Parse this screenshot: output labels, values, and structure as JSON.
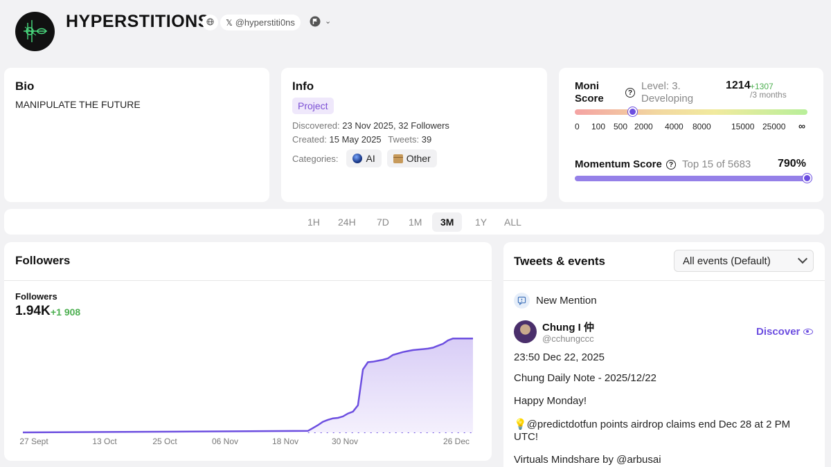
{
  "header": {
    "title": "HYPERSTITIONS",
    "x_handle": "@hyperstiti0ns",
    "icons": [
      "globe-icon",
      "x-logo-icon",
      "flag-icon",
      "chevron-down-icon"
    ]
  },
  "bio": {
    "title": "Bio",
    "text": "MANIPULATE THE FUTURE"
  },
  "info": {
    "title": "Info",
    "tag": "Project",
    "discovered_label": "Discovered:",
    "discovered_value": "23 Nov 2025, 32 Followers",
    "created_label": "Created:",
    "created_value": "15 May 2025",
    "tweets_label": "Tweets:",
    "tweets_value": "39",
    "categories_label": "Categories:",
    "categories": [
      "AI",
      "Other"
    ]
  },
  "moni": {
    "title": "Moni Score",
    "level": "Level: 3. Developing",
    "score": "1214",
    "delta": "+1307",
    "period": "/3 months",
    "ticks": [
      "0",
      "100",
      "500",
      "2000",
      "4000",
      "8000",
      "15000",
      "25000",
      "∞"
    ],
    "momentum_title": "Momentum Score",
    "momentum_rank": "Top 15 of 5683",
    "momentum_value": "790%",
    "momentum_fill": 1.0,
    "colors": {
      "accent": "#6c4ee0",
      "momentum": "#9580e8"
    }
  },
  "timeframes": {
    "items": [
      "1H",
      "24H",
      "7D",
      "1M",
      "3M",
      "1Y",
      "ALL"
    ],
    "active": "3M"
  },
  "followers": {
    "title": "Followers",
    "label": "Followers",
    "value": "1.94K",
    "delta": "+1 908"
  },
  "chart_data": {
    "type": "area",
    "x_labels": [
      "27 Sept",
      "13 Oct",
      "25 Oct",
      "06 Nov",
      "18 Nov",
      "30 Nov",
      "26 Dec"
    ],
    "x": [
      "2025-09-27",
      "2025-11-23",
      "2025-11-24",
      "2025-11-25",
      "2025-11-26",
      "2025-11-27",
      "2025-11-28",
      "2025-11-29",
      "2025-11-30",
      "2025-12-01",
      "2025-12-02",
      "2025-12-03",
      "2025-12-04",
      "2025-12-05",
      "2025-12-06",
      "2025-12-07",
      "2025-12-08",
      "2025-12-09",
      "2025-12-10",
      "2025-12-11",
      "2025-12-12",
      "2025-12-13",
      "2025-12-14",
      "2025-12-15",
      "2025-12-16",
      "2025-12-17",
      "2025-12-18",
      "2025-12-19",
      "2025-12-20",
      "2025-12-21",
      "2025-12-22",
      "2025-12-23",
      "2025-12-24",
      "2025-12-25",
      "2025-12-26"
    ],
    "series": [
      {
        "values": [
          0,
          32,
          90,
          150,
          220,
          260,
          290,
          300,
          330,
          390,
          430,
          560,
          1300,
          1450,
          1460,
          1480,
          1500,
          1530,
          1600,
          1630,
          1660,
          1680,
          1700,
          1710,
          1720,
          1730,
          1750,
          1790,
          1830,
          1900,
          1940,
          1940,
          1940,
          1940,
          1940
        ]
      }
    ],
    "ylim": [
      0,
      2000
    ],
    "colors": {
      "line": "#6c4ee0",
      "fill_top": "#d8cdf6",
      "fill_bottom": "#f4f0fd"
    }
  },
  "tweets": {
    "title": "Tweets & events",
    "filter": "All events (Default)",
    "event_type": "New Mention",
    "user_name": "Chung I 仲",
    "user_handle": "@cchungccc",
    "action": "Discover",
    "time": "23:50 Dec 22, 2025",
    "line1": "Chung Daily Note - 2025/12/22",
    "line2": "Happy Monday!",
    "line3": "💡@predictdotfun points airdrop claims end Dec 28 at 2 PM UTC!",
    "line4": "Virtuals Mindshare by @arbusai"
  }
}
